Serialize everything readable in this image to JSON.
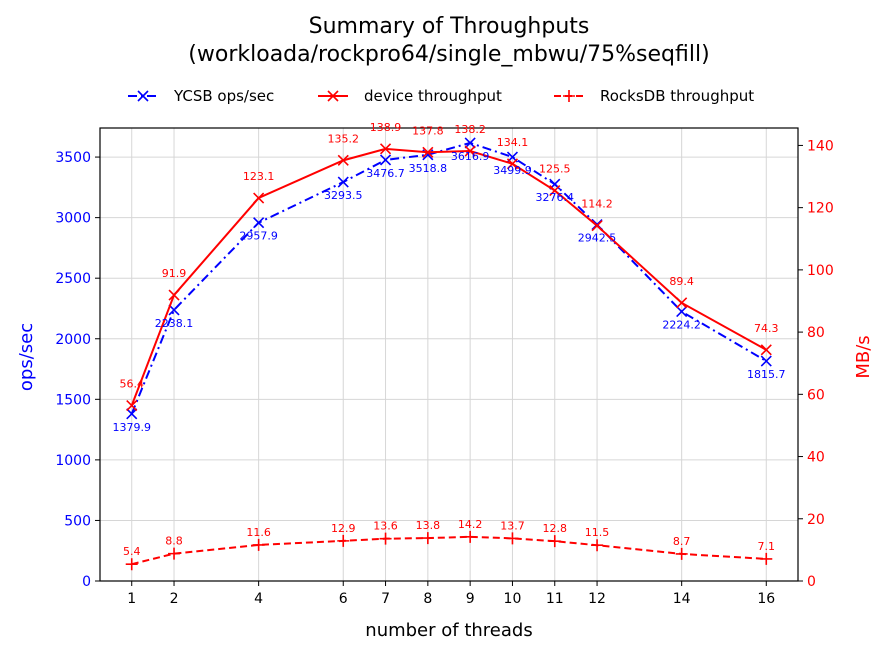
{
  "chart_data": {
    "type": "line",
    "title": "Summary of Throughputs",
    "subtitle": "(workloada/rockpro64/single_mbwu/75%seqfill)",
    "xlabel": "number of threads",
    "ylabel_left": "ops/sec",
    "ylabel_right": "MB/s",
    "x": [
      1,
      2,
      4,
      6,
      7,
      8,
      9,
      10,
      11,
      12,
      14,
      16
    ],
    "xlim": [
      0.25,
      16.75
    ],
    "ylim_left": [
      0,
      3740
    ],
    "ylim_right": [
      0,
      145.6
    ],
    "yticks_left": [
      0,
      500,
      1000,
      1500,
      2000,
      2500,
      3000,
      3500
    ],
    "yticks_right": [
      0,
      20,
      40,
      60,
      80,
      100,
      120,
      140
    ],
    "grid": true,
    "legend_position": "top",
    "colors": {
      "left_axis": "#0000ff",
      "right_axis": "#ff0000"
    },
    "series": [
      {
        "name": "YCSB ops/sec",
        "axis": "left",
        "color": "#0000ff",
        "linestyle": "dashdot",
        "marker": "x",
        "values": [
          1379.9,
          2238.1,
          2957.9,
          3293.5,
          3476.7,
          3518.8,
          3616.9,
          3499.9,
          3276.4,
          2942.5,
          2224.2,
          1815.7
        ],
        "labels": [
          "1379.9",
          "2238.1",
          "2957.9",
          "3293.5",
          "3476.7",
          "3518.8",
          "3616.9",
          "3499.9",
          "3276.4",
          "2942.5",
          "2224.2",
          "1815.7"
        ]
      },
      {
        "name": "device throughput",
        "axis": "right",
        "color": "#ff0000",
        "linestyle": "solid",
        "marker": "x",
        "values": [
          56.4,
          91.9,
          123.1,
          135.2,
          138.9,
          137.8,
          138.2,
          134.1,
          125.5,
          114.2,
          89.4,
          74.3
        ],
        "labels": [
          "56.4",
          "91.9",
          "123.1",
          "135.2",
          "138.9",
          "137.8",
          "138.2",
          "134.1",
          "125.5",
          "114.2",
          "89.4",
          "74.3"
        ]
      },
      {
        "name": "RocksDB throughput",
        "axis": "right",
        "color": "#ff0000",
        "linestyle": "dashed",
        "marker": "plus",
        "values": [
          5.4,
          8.8,
          11.6,
          12.9,
          13.6,
          13.8,
          14.2,
          13.7,
          12.8,
          11.5,
          8.7,
          7.1
        ],
        "labels": [
          "5.4",
          "8.8",
          "11.6",
          "12.9",
          "13.6",
          "13.8",
          "14.2",
          "13.7",
          "12.8",
          "11.5",
          "8.7",
          "7.1"
        ]
      }
    ]
  }
}
